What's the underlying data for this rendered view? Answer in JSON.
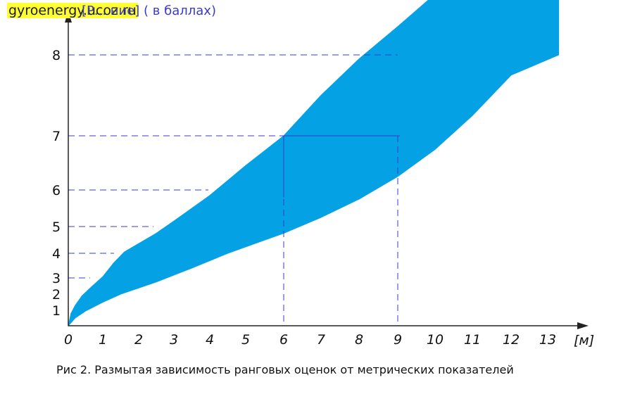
{
  "watermark": "gyroenergy.ucoz.ru",
  "chart_data": {
    "type": "area",
    "ylabel": "[Р... ние] ( в баллах)",
    "xlabel": "[м]",
    "caption": "Рис 2.  Размытая зависимость ранговых оценок от метрических показателей",
    "x_ticks": [
      "0",
      "1",
      "2",
      "3",
      "4",
      "5",
      "6",
      "7",
      "8",
      "9",
      "10",
      "11",
      "12",
      "13"
    ],
    "y_ticks": [
      "1",
      "2",
      "3",
      "4",
      "5",
      "6",
      "7",
      "8"
    ],
    "xlim": [
      0,
      13.6
    ],
    "ylim": [
      0,
      8.6
    ],
    "band_color": "#05a1e5",
    "grid_color": "#3a3ad0",
    "series": [
      {
        "role": "upper",
        "x": [
          0,
          0.08,
          0.2,
          0.4,
          0.7,
          1.0,
          1.3,
          1.6,
          2.5,
          3.0,
          4.0,
          5.0,
          6.0,
          7.0,
          8.0,
          9.0,
          10.0,
          10.2,
          13.3,
          13.3
        ],
        "y": [
          0,
          0.8,
          1.3,
          1.9,
          2.5,
          3.05,
          3.6,
          4.05,
          4.75,
          5.15,
          5.85,
          6.45,
          7.0,
          7.5,
          7.95,
          8.35,
          8.75,
          8.82,
          8.82,
          8.0
        ]
      },
      {
        "role": "lower",
        "x": [
          0,
          0.2,
          0.5,
          1.0,
          1.5,
          2.5,
          3.5,
          4.5,
          6.0,
          7.0,
          8.0,
          9.0,
          10.0,
          11.0,
          12.0,
          13.3
        ],
        "y": [
          0,
          0.5,
          0.95,
          1.5,
          2.0,
          2.75,
          3.4,
          4.0,
          4.75,
          5.25,
          5.75,
          6.25,
          6.75,
          7.25,
          7.75,
          8.0
        ]
      }
    ],
    "guides": [
      {
        "x": 0,
        "y": 8
      },
      {
        "x": 9,
        "y": 7
      },
      {
        "x": 0,
        "y": 6
      },
      {
        "x": 0,
        "y": 5
      },
      {
        "x": 0,
        "y": 4
      },
      {
        "x": 0,
        "y": 3
      },
      {
        "x": 6,
        "y": 7
      },
      {
        "x": 6,
        "y": 0
      },
      {
        "x": 9,
        "y": 0
      }
    ]
  }
}
